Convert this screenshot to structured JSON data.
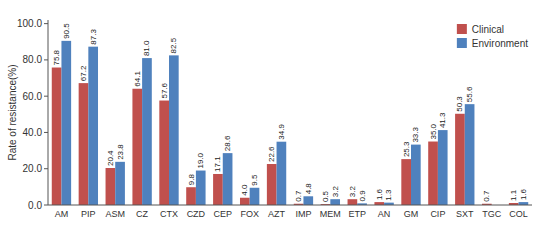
{
  "chart_data": {
    "type": "bar",
    "categories": [
      "AM",
      "PIP",
      "ASM",
      "CZ",
      "CTX",
      "CZD",
      "CEP",
      "FOX",
      "AZT",
      "IMP",
      "MEM",
      "ETP",
      "AN",
      "GM",
      "CIP",
      "SXT",
      "TGC",
      "COL"
    ],
    "series": [
      {
        "name": "Clinical",
        "color": "#C0504D",
        "values": [
          75.8,
          67.2,
          20.4,
          64.1,
          57.6,
          9.8,
          17.1,
          4.0,
          22.6,
          0.7,
          0.5,
          3.2,
          1.6,
          25.3,
          35.0,
          50.3,
          0.7,
          1.1
        ],
        "value_labels": [
          "75.8",
          "67.2",
          "20.4",
          "64.1",
          "57.6",
          "9.8",
          "17.1",
          "4.0",
          "22.6",
          "0.7",
          "0.5",
          "3.2",
          "1.6",
          "25.3",
          "35.0",
          "50.3",
          "0.7",
          "1.1"
        ]
      },
      {
        "name": "Environment",
        "color": "#4F81BD",
        "values": [
          90.5,
          87.3,
          23.8,
          81.0,
          82.5,
          19.0,
          28.6,
          9.5,
          34.9,
          4.8,
          3.2,
          0.9,
          1.3,
          33.3,
          41.3,
          55.6,
          0.0,
          1.6
        ],
        "value_labels": [
          "90.5",
          "87.3",
          "23.8",
          "81.0",
          "82.5",
          "19.0",
          "28.6",
          "9.5",
          "34.9",
          "4.8",
          "3.2",
          "0.9",
          "1.3",
          "33.3",
          "41.3",
          "55.6",
          null,
          "1.6"
        ]
      }
    ],
    "ylabel": "Rate of resistance(%)",
    "ylim": [
      0.0,
      102.0
    ],
    "yticks": [
      {
        "value": 0.0,
        "label": "0.0"
      },
      {
        "value": 20.0,
        "label": "20.0"
      },
      {
        "value": 40.0,
        "label": "40.0"
      },
      {
        "value": 60.0,
        "label": "60.0"
      },
      {
        "value": 80.0,
        "label": "80.0"
      },
      {
        "value": 100.0,
        "label": "100.0"
      }
    ],
    "grid": false,
    "legend": "upper right",
    "data_labels": true
  }
}
